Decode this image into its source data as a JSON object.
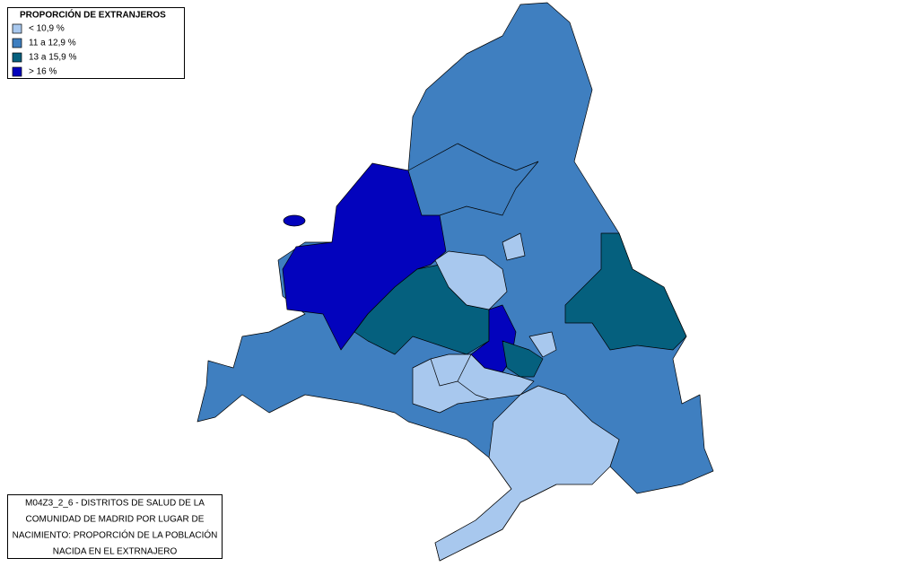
{
  "legend": {
    "title": "PROPORCIÓN DE EXTRANJEROS",
    "items": [
      {
        "label": "< 10,9 %",
        "color": "#a8c8ee"
      },
      {
        "label": "11 a 12,9 %",
        "color": "#3f7fc0"
      },
      {
        "label": "13 a 15,9 %",
        "color": "#05607e"
      },
      {
        "label": "> 16 %",
        "color": "#0303bd"
      }
    ]
  },
  "caption": {
    "lines": [
      "M04Z3_2_6 - DISTRITOS DE SALUD DE LA",
      "COMUNIDAD DE MADRID POR LUGAR DE",
      "NACIMIENTO: PROPORCIÓN DE LA POBLACIÓN",
      "NACIDA EN EL EXTRNAJERO"
    ]
  }
}
